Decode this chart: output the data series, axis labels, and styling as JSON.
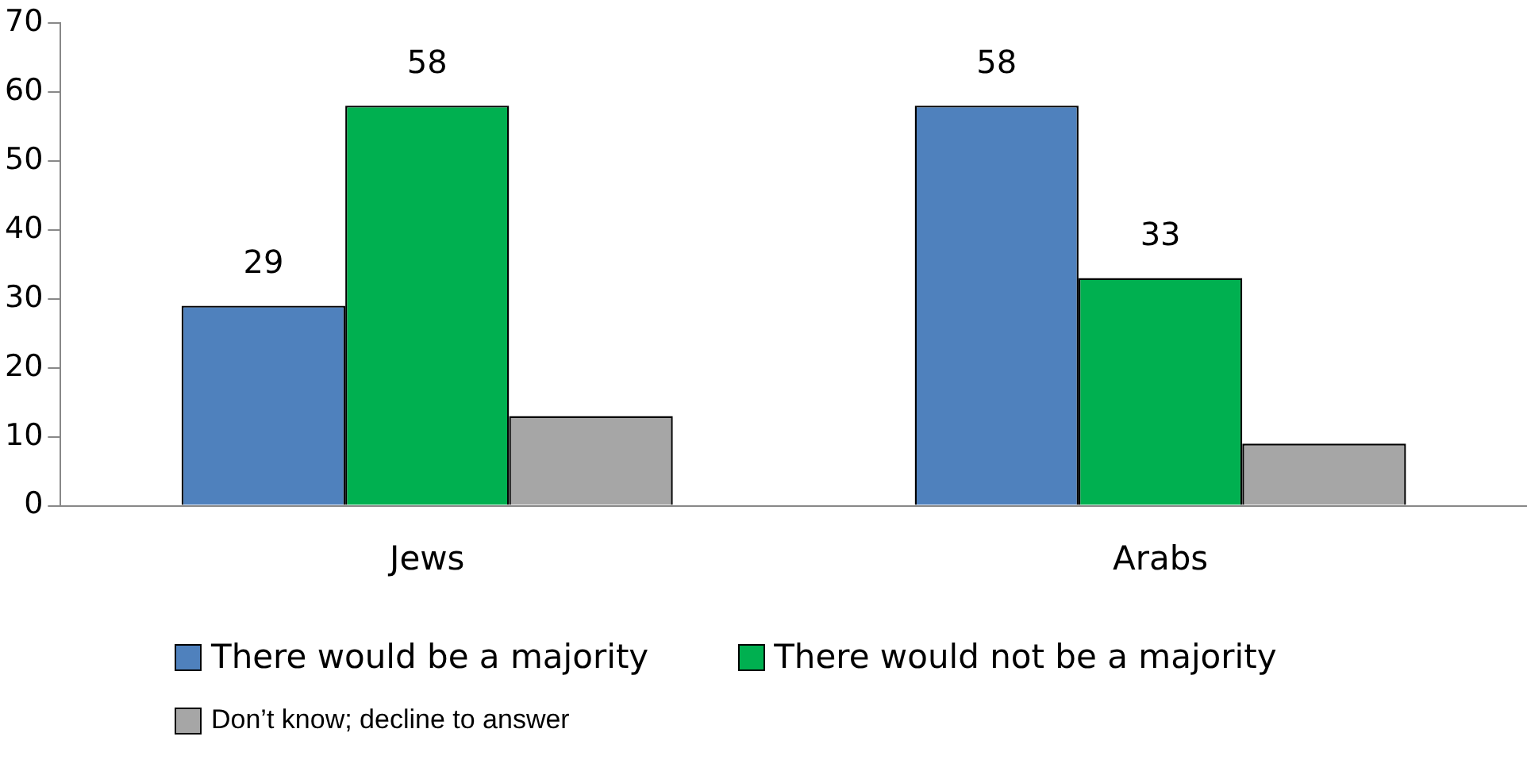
{
  "chart_data": {
    "type": "bar",
    "categories": [
      "Jews",
      "Arabs"
    ],
    "series": [
      {
        "name": "There would be a majority",
        "color": "#4f81bd",
        "values": [
          29,
          58
        ],
        "value_labels": [
          "29",
          "58"
        ]
      },
      {
        "name": "There would not be a majority",
        "color": "#00b050",
        "values": [
          58,
          33
        ],
        "value_labels": [
          "58",
          "33"
        ]
      },
      {
        "name": "Don’t know; decline to answer",
        "color": "#a6a6a6",
        "values": [
          13,
          9
        ],
        "value_labels": [
          null,
          null
        ]
      }
    ],
    "ylim": [
      0,
      70
    ],
    "yticks": [
      0,
      10,
      20,
      30,
      40,
      50,
      60,
      70
    ],
    "grid": false,
    "legend": "bottom"
  }
}
